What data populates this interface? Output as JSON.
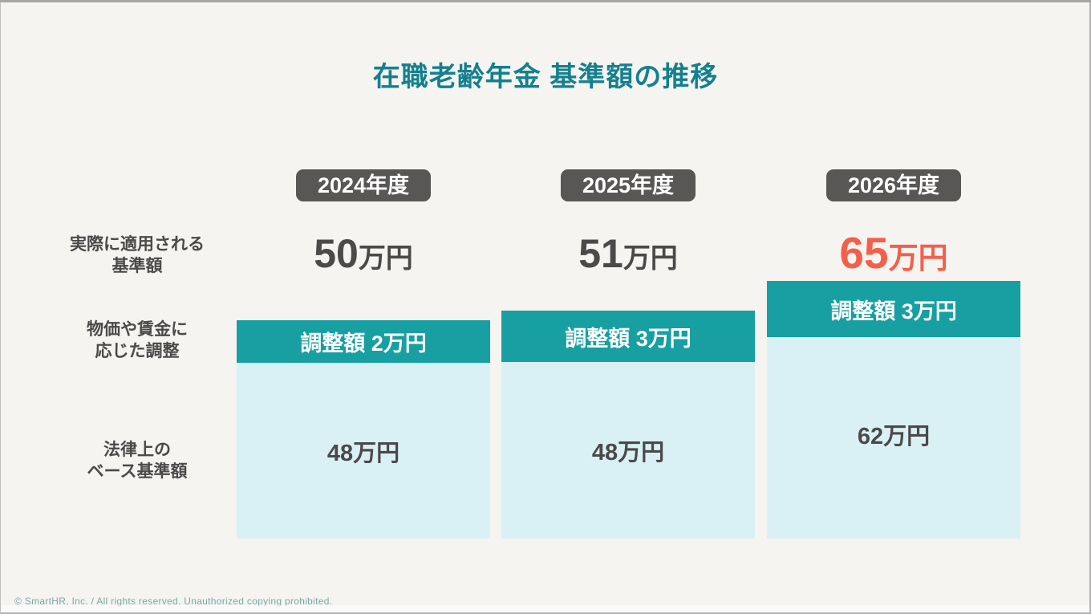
{
  "slide": {
    "title": "在職老齢年金 基準額の推移",
    "footer": "© SmartHR, Inc. / All rights reserved. Unauthorized copying prohibited."
  },
  "row_headers": [
    {
      "line1": "実際に適用される",
      "line2": "基準額"
    },
    {
      "line1": "物価や賃金に",
      "line2": "応じた調整"
    },
    {
      "line1": "法律上の",
      "line2": "ベース基準額"
    }
  ],
  "columns": [
    {
      "year": "2024年度",
      "applied_value": "50",
      "applied_unit": "万円",
      "adjustment_label": "調整額 2万円",
      "base_amount": "48万円",
      "highlight": false
    },
    {
      "year": "2025年度",
      "applied_value": "51",
      "applied_unit": "万円",
      "adjustment_label": "調整額 3万円",
      "base_amount": "48万円",
      "highlight": false
    },
    {
      "year": "2026年度",
      "applied_value": "65",
      "applied_unit": "万円",
      "adjustment_label": "調整額 3万円",
      "base_amount": "62万円",
      "highlight": true
    }
  ],
  "colors": {
    "bg": "#f5f4f1",
    "title-teal": "#15808d",
    "badge-gray": "#595656",
    "text-dark": "#4b4949",
    "teal-band": "#189fa2",
    "light-blue": "#d9f1f4",
    "accent-red": "#f2604c",
    "footer-teal": "#7aa8a5"
  },
  "chart_data": {
    "type": "bar",
    "title": "在職老齢年金 基準額の推移",
    "categories": [
      "2024年度",
      "2025年度",
      "2026年度"
    ],
    "series": [
      {
        "name": "法律上のベース基準額",
        "values": [
          48,
          48,
          62
        ]
      },
      {
        "name": "物価や賃金に応じた調整",
        "values": [
          2,
          3,
          3
        ]
      }
    ],
    "totals_applied_standard_amount": [
      50,
      51,
      65
    ],
    "unit": "万円",
    "row_labels": [
      "実際に適用される基準額",
      "物価や賃金に応じた調整",
      "法律上のベース基準額"
    ],
    "highlight_category": "2026年度",
    "legend_position": "none",
    "grid": false
  }
}
